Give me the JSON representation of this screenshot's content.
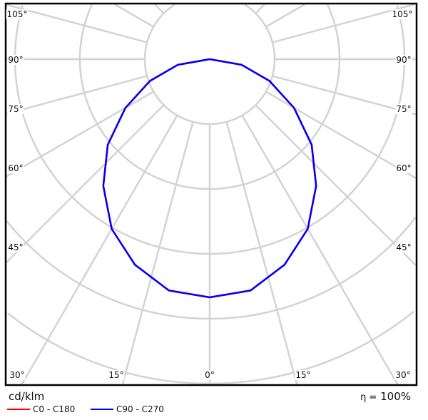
{
  "chart_data": {
    "type": "polar",
    "unit": "cd/klm",
    "angle_labels_left": [
      "105°",
      "90°",
      "75°",
      "60°",
      "45°",
      "30°"
    ],
    "angle_labels_right": [
      "105°",
      "90°",
      "75°",
      "60°",
      "45°",
      "30°"
    ],
    "angle_labels_bottom": [
      "30°",
      "15°",
      "0°",
      "15°",
      "30°"
    ],
    "angle_step_deg": 15,
    "grid": true,
    "ring_labels_visible": false,
    "angles_deg": [
      0,
      10,
      20,
      30,
      40,
      50,
      60,
      70,
      80,
      90
    ],
    "series": [
      {
        "name": "C0 - C180",
        "color": "#ff0000",
        "values_relative": [
          3.67,
          3.62,
          3.37,
          3.02,
          2.55,
          2.05,
          1.5,
          0.98,
          0.5,
          0
        ]
      },
      {
        "name": "C90 - C270",
        "color": "#0000ff",
        "values_relative": [
          3.67,
          3.62,
          3.37,
          3.02,
          2.55,
          2.05,
          1.5,
          0.98,
          0.5,
          0
        ]
      }
    ],
    "efficiency_symbol": "η =",
    "efficiency": "100%",
    "legend_placement": "bottom-left"
  }
}
